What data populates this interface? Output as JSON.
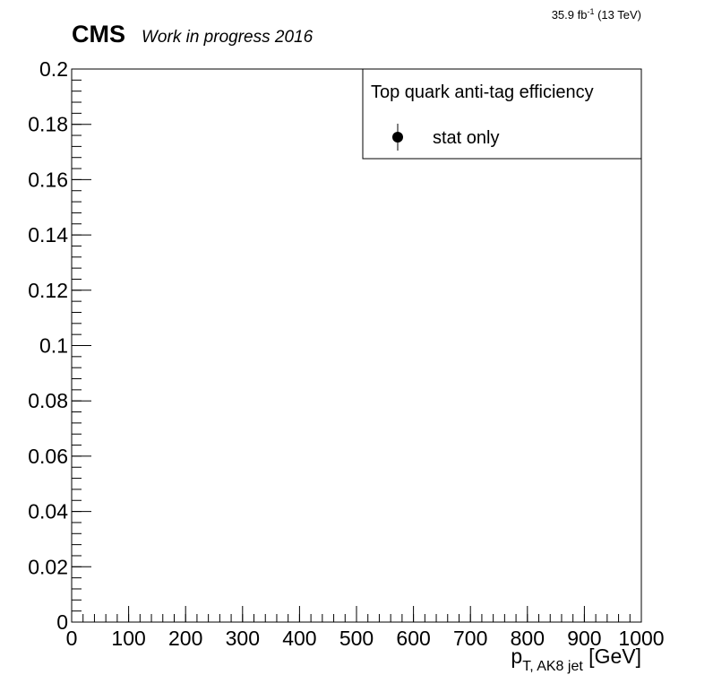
{
  "header": {
    "experiment": "CMS",
    "status": "Work in progress 2016",
    "lumi_value": "35.9 fb",
    "lumi_exp": "-1",
    "lumi_energy": " (13 TeV)"
  },
  "chart_data": {
    "type": "scatter",
    "title": "",
    "xlabel": {
      "main": "p",
      "sub": "T, AK8 jet",
      "unit": " [GeV]"
    },
    "ylabel": "",
    "xlim": [
      0,
      1000
    ],
    "ylim": [
      0,
      0.2
    ],
    "xticks": [
      0,
      100,
      200,
      300,
      400,
      500,
      600,
      700,
      800,
      900,
      1000
    ],
    "xtick_labels": [
      "0",
      "100",
      "200",
      "300",
      "400",
      "500",
      "600",
      "700",
      "800",
      "900",
      "1000"
    ],
    "yticks": [
      0,
      0.02,
      0.04,
      0.06,
      0.08,
      0.1,
      0.12,
      0.14,
      0.16,
      0.18,
      0.2
    ],
    "ytick_labels": [
      "0",
      "0.02",
      "0.04",
      "0.06",
      "0.08",
      "0.1",
      "0.12",
      "0.14",
      "0.16",
      "0.18",
      "0.2"
    ],
    "x_minor_per_major": 5,
    "y_minor_per_major": 5,
    "grid": false,
    "legend": {
      "placement": "top-right",
      "header": "Top quark anti-tag efficiency",
      "entries": [
        {
          "label": "stat only",
          "marker": "point-with-error-bar",
          "color": "#000000"
        }
      ]
    },
    "series": [
      {
        "name": "stat only",
        "points": []
      }
    ]
  }
}
